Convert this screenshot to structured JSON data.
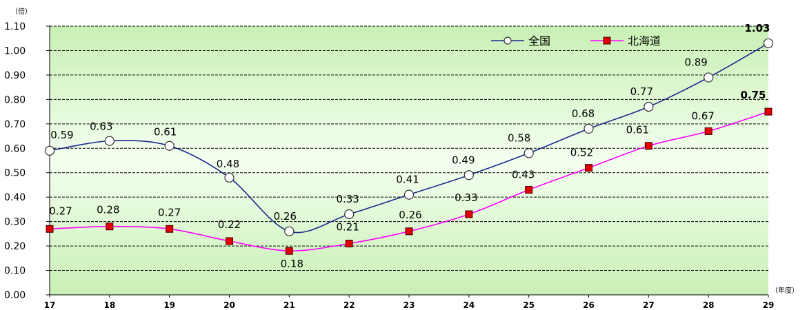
{
  "chart_data": {
    "type": "line",
    "y_unit_label": "（倍）",
    "x_unit_label": "（年度）",
    "categories": [
      "17",
      "18",
      "19",
      "20",
      "21",
      "22",
      "23",
      "24",
      "25",
      "26",
      "27",
      "28",
      "29"
    ],
    "ylim": [
      0,
      1.1
    ],
    "yticks": [
      "0.00",
      "0.10",
      "0.20",
      "0.30",
      "0.40",
      "0.50",
      "0.60",
      "0.70",
      "0.80",
      "0.90",
      "1.00",
      "1.10"
    ],
    "grid": true,
    "legend_position": "top-right",
    "series": [
      {
        "name": "全国",
        "color": "#1a2a8c",
        "marker": "circle",
        "values": [
          0.59,
          0.63,
          0.61,
          0.48,
          0.26,
          0.33,
          0.41,
          0.49,
          0.58,
          0.68,
          0.77,
          0.89,
          1.03
        ],
        "labels": [
          "0.59",
          "0.63",
          "0.61",
          "0.48",
          "0.26",
          "0.33",
          "0.41",
          "0.49",
          "0.58",
          "0.68",
          "0.77",
          "0.89",
          "1.03"
        ]
      },
      {
        "name": "北海道",
        "color": "#ff00ff",
        "marker": "square",
        "values": [
          0.27,
          0.28,
          0.27,
          0.22,
          0.18,
          0.21,
          0.26,
          0.33,
          0.43,
          0.52,
          0.61,
          0.67,
          0.75
        ],
        "labels": [
          "0.27",
          "0.28",
          "0.27",
          "0.22",
          "0.18",
          "0.21",
          "0.26",
          "0.33",
          "0.43",
          "0.52",
          "0.61",
          "0.67",
          "0.75"
        ]
      }
    ],
    "plot_background": "#d6f5c8"
  }
}
